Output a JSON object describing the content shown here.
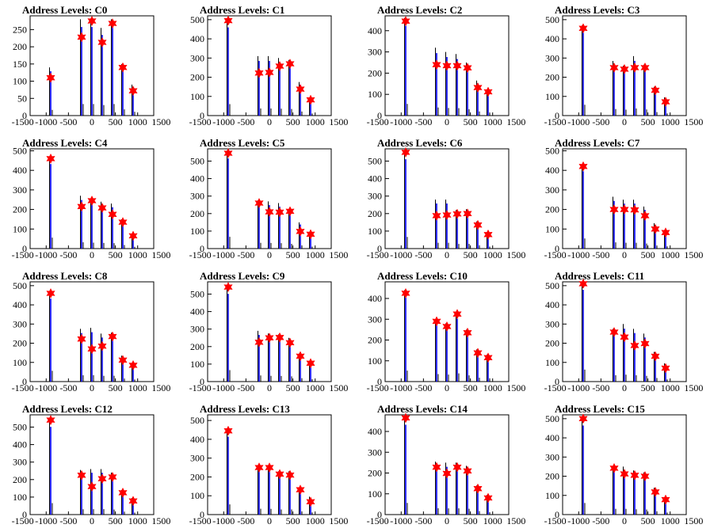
{
  "colors": {
    "peak": "#0000ff",
    "base": "#000000",
    "marker": "#ff0000",
    "frame": "#000000"
  },
  "chart_data": [
    {
      "type": "bar",
      "title": "Address Levels: C0",
      "xlim": [
        -1500,
        1500
      ],
      "ylim": [
        0,
        290
      ],
      "xticks": [
        "-1500",
        "-1000",
        "-500",
        "0",
        "500",
        "1000",
        "1500"
      ],
      "yticks": [
        "0",
        "50",
        "100",
        "150",
        "200",
        "250"
      ],
      "series": [
        {
          "x": [
            -1000,
            -250,
            0,
            250,
            500,
            750,
            1000
          ],
          "values": [
            140,
            280,
            280,
            255,
            280,
            150,
            90
          ]
        }
      ],
      "markers": [
        {
          "x": [
            -1000,
            -250,
            0,
            250,
            500,
            750,
            1000
          ],
          "y": [
            110,
            228,
            275,
            213,
            268,
            140,
            72
          ]
        }
      ]
    },
    {
      "type": "bar",
      "title": "Address Levels: C1",
      "xlim": [
        -1500,
        1500
      ],
      "ylim": [
        0,
        520
      ],
      "xticks": [
        "-1500",
        "-1000",
        "-500",
        "0",
        "500",
        "1000",
        "1500"
      ],
      "yticks": [
        "0",
        "100",
        "200",
        "300",
        "400",
        "500"
      ],
      "series": [
        {
          "x": [
            -1000,
            -250,
            0,
            250,
            500,
            750,
            1000
          ],
          "values": [
            500,
            310,
            310,
            300,
            290,
            175,
            90
          ]
        }
      ],
      "markers": [
        {
          "x": [
            -1000,
            -250,
            0,
            250,
            500,
            750,
            1000
          ],
          "y": [
            495,
            222,
            225,
            258,
            270,
            138,
            82
          ]
        }
      ]
    },
    {
      "type": "bar",
      "title": "Address Levels: C2",
      "xlim": [
        -1500,
        1500
      ],
      "ylim": [
        0,
        470
      ],
      "xticks": [
        "-1500",
        "-1000",
        "-500",
        "0",
        "500",
        "1000",
        "1500"
      ],
      "yticks": [
        "0",
        "100",
        "200",
        "300",
        "400"
      ],
      "series": [
        {
          "x": [
            -1000,
            -250,
            0,
            250,
            500,
            750,
            1000
          ],
          "values": [
            460,
            320,
            300,
            290,
            250,
            165,
            120
          ]
        }
      ],
      "markers": [
        {
          "x": [
            -1000,
            -250,
            0,
            250,
            500,
            750,
            1000
          ],
          "y": [
            445,
            240,
            235,
            235,
            225,
            132,
            112
          ]
        }
      ]
    },
    {
      "type": "bar",
      "title": "Address Levels: C3",
      "xlim": [
        -1500,
        1500
      ],
      "ylim": [
        0,
        520
      ],
      "xticks": [
        "-1500",
        "-1000",
        "-500",
        "0",
        "500",
        "1000",
        "1500"
      ],
      "yticks": [
        "0",
        "100",
        "200",
        "300",
        "400",
        "500"
      ],
      "series": [
        {
          "x": [
            -1000,
            -250,
            0,
            250,
            500,
            750,
            1000
          ],
          "values": [
            470,
            285,
            260,
            310,
            265,
            150,
            95
          ]
        }
      ],
      "markers": [
        {
          "x": [
            -1000,
            -250,
            0,
            250,
            500,
            750,
            1000
          ],
          "y": [
            455,
            250,
            242,
            250,
            250,
            132,
            72
          ]
        }
      ]
    },
    {
      "type": "bar",
      "title": "Address Levels: C4",
      "xlim": [
        -1500,
        1500
      ],
      "ylim": [
        0,
        510
      ],
      "xticks": [
        "-1500",
        "-1000",
        "-500",
        "0",
        "500",
        "1000",
        "1500"
      ],
      "yticks": [
        "0",
        "100",
        "200",
        "300",
        "400",
        "500"
      ],
      "series": [
        {
          "x": [
            -1000,
            -250,
            0,
            250,
            500,
            750,
            1000
          ],
          "values": [
            470,
            270,
            255,
            240,
            230,
            150,
            75
          ]
        }
      ],
      "markers": [
        {
          "x": [
            -1000,
            -250,
            0,
            250,
            500,
            750,
            1000
          ],
          "y": [
            460,
            215,
            245,
            208,
            175,
            135,
            65
          ]
        }
      ]
    },
    {
      "type": "bar",
      "title": "Address Levels: C5",
      "xlim": [
        -1500,
        1500
      ],
      "ylim": [
        0,
        570
      ],
      "xticks": [
        "-1500",
        "-1000",
        "-500",
        "0",
        "500",
        "1000",
        "1500"
      ],
      "yticks": [
        "0",
        "100",
        "200",
        "300",
        "400",
        "500"
      ],
      "series": [
        {
          "x": [
            -1000,
            -250,
            0,
            250,
            500,
            750,
            1000
          ],
          "values": [
            560,
            275,
            270,
            260,
            225,
            150,
            95
          ]
        }
      ],
      "markers": [
        {
          "x": [
            -1000,
            -250,
            0,
            250,
            500,
            750,
            1000
          ],
          "y": [
            545,
            260,
            210,
            208,
            213,
            98,
            82
          ]
        }
      ]
    },
    {
      "type": "bar",
      "title": "Address Levels: C6",
      "xlim": [
        -1500,
        1500
      ],
      "ylim": [
        0,
        570
      ],
      "xticks": [
        "-1500",
        "-1000",
        "-500",
        "0",
        "500",
        "1000",
        "1500"
      ],
      "yticks": [
        "0",
        "100",
        "200",
        "300",
        "400",
        "500"
      ],
      "series": [
        {
          "x": [
            -1000,
            -250,
            0,
            250,
            500,
            750,
            1000
          ],
          "values": [
            555,
            280,
            280,
            220,
            225,
            155,
            95
          ]
        }
      ],
      "markers": [
        {
          "x": [
            -1000,
            -250,
            0,
            250,
            500,
            750,
            1000
          ],
          "y": [
            550,
            188,
            192,
            198,
            200,
            135,
            80
          ]
        }
      ]
    },
    {
      "type": "bar",
      "title": "Address Levels: C7",
      "xlim": [
        -1500,
        1500
      ],
      "ylim": [
        0,
        510
      ],
      "xticks": [
        "-1500",
        "-1000",
        "-500",
        "0",
        "500",
        "1000",
        "1500"
      ],
      "yticks": [
        "0",
        "100",
        "200",
        "300",
        "400",
        "500"
      ],
      "series": [
        {
          "x": [
            -1000,
            -250,
            0,
            250,
            500,
            750,
            1000
          ],
          "values": [
            430,
            265,
            250,
            250,
            215,
            130,
            95
          ]
        }
      ],
      "markers": [
        {
          "x": [
            -1000,
            -250,
            0,
            250,
            500,
            750,
            1000
          ],
          "y": [
            420,
            200,
            200,
            198,
            168,
            100,
            82
          ]
        }
      ]
    },
    {
      "type": "bar",
      "title": "Address Levels: C8",
      "xlim": [
        -1500,
        1500
      ],
      "ylim": [
        0,
        520
      ],
      "xticks": [
        "-1500",
        "-1000",
        "-500",
        "0",
        "500",
        "1000",
        "1500"
      ],
      "yticks": [
        "0",
        "100",
        "200",
        "300",
        "400",
        "500"
      ],
      "series": [
        {
          "x": [
            -1000,
            -250,
            0,
            250,
            500,
            750,
            1000
          ],
          "values": [
            470,
            275,
            280,
            250,
            255,
            135,
            90
          ]
        }
      ],
      "markers": [
        {
          "x": [
            -1000,
            -250,
            0,
            250,
            500,
            750,
            1000
          ],
          "y": [
            460,
            222,
            170,
            185,
            235,
            112,
            85
          ]
        }
      ]
    },
    {
      "type": "bar",
      "title": "Address Levels: C9",
      "xlim": [
        -1500,
        1500
      ],
      "ylim": [
        0,
        570
      ],
      "xticks": [
        "-1500",
        "-1000",
        "-500",
        "0",
        "500",
        "1000",
        "1500"
      ],
      "yticks": [
        "0",
        "100",
        "200",
        "300",
        "400",
        "500"
      ],
      "series": [
        {
          "x": [
            -1000,
            -250,
            0,
            250,
            500,
            750,
            1000
          ],
          "values": [
            545,
            290,
            275,
            270,
            250,
            160,
            115
          ]
        }
      ],
      "markers": [
        {
          "x": [
            -1000,
            -250,
            0,
            250,
            500,
            750,
            1000
          ],
          "y": [
            540,
            225,
            250,
            252,
            222,
            145,
            105
          ]
        }
      ]
    },
    {
      "type": "bar",
      "title": "Address Levels: C10",
      "xlim": [
        -1500,
        1500
      ],
      "ylim": [
        0,
        480
      ],
      "xticks": [
        "-1500",
        "-1000",
        "-500",
        "0",
        "500",
        "1000",
        "1500"
      ],
      "yticks": [
        "0",
        "100",
        "200",
        "300",
        "400"
      ],
      "series": [
        {
          "x": [
            -1000,
            -250,
            0,
            250,
            500,
            750,
            1000
          ],
          "values": [
            440,
            300,
            280,
            330,
            250,
            155,
            130
          ]
        }
      ],
      "markers": [
        {
          "x": [
            -1000,
            -250,
            0,
            250,
            500,
            750,
            1000
          ],
          "y": [
            425,
            290,
            265,
            325,
            235,
            138,
            115
          ]
        }
      ]
    },
    {
      "type": "bar",
      "title": "Address Levels: C11",
      "xlim": [
        -1500,
        1500
      ],
      "ylim": [
        0,
        520
      ],
      "xticks": [
        "-1500",
        "-1000",
        "-500",
        "0",
        "500",
        "1000",
        "1500"
      ],
      "yticks": [
        "0",
        "100",
        "200",
        "300",
        "400",
        "500"
      ],
      "series": [
        {
          "x": [
            -1000,
            -250,
            0,
            250,
            500,
            750,
            1000
          ],
          "values": [
            520,
            275,
            300,
            275,
            250,
            155,
            95
          ]
        }
      ],
      "markers": [
        {
          "x": [
            -1000,
            -250,
            0,
            250,
            500,
            750,
            1000
          ],
          "y": [
            510,
            258,
            232,
            188,
            198,
            132,
            70
          ]
        }
      ]
    },
    {
      "type": "bar",
      "title": "Address Levels: C12",
      "xlim": [
        -1500,
        1500
      ],
      "ylim": [
        0,
        570
      ],
      "xticks": [
        "-1500",
        "-1000",
        "-500",
        "0",
        "500",
        "1000",
        "1500"
      ],
      "yticks": [
        "0",
        "100",
        "200",
        "300",
        "400",
        "500"
      ],
      "series": [
        {
          "x": [
            -1000,
            -250,
            0,
            250,
            500,
            750,
            1000
          ],
          "values": [
            545,
            255,
            260,
            260,
            240,
            140,
            95
          ]
        }
      ],
      "markers": [
        {
          "x": [
            -1000,
            -250,
            0,
            250,
            500,
            750,
            1000
          ],
          "y": [
            540,
            225,
            160,
            205,
            215,
            125,
            78
          ]
        }
      ]
    },
    {
      "type": "bar",
      "title": "Address Levels: C13",
      "xlim": [
        -1500,
        1500
      ],
      "ylim": [
        0,
        530
      ],
      "xticks": [
        "-1500",
        "-1000",
        "-500",
        "0",
        "500",
        "1000",
        "1500"
      ],
      "yticks": [
        "0",
        "100",
        "200",
        "300",
        "400",
        "500"
      ],
      "series": [
        {
          "x": [
            -1000,
            -250,
            0,
            250,
            500,
            750,
            1000
          ],
          "values": [
            450,
            260,
            255,
            230,
            230,
            140,
            95
          ]
        }
      ],
      "markers": [
        {
          "x": [
            -1000,
            -250,
            0,
            250,
            500,
            750,
            1000
          ],
          "y": [
            445,
            250,
            250,
            215,
            210,
            132,
            68
          ]
        }
      ]
    },
    {
      "type": "bar",
      "title": "Address Levels: C14",
      "xlim": [
        -1500,
        1500
      ],
      "ylim": [
        0,
        480
      ],
      "xticks": [
        "-1500",
        "-1000",
        "-500",
        "0",
        "500",
        "1000",
        "1500"
      ],
      "yticks": [
        "0",
        "100",
        "200",
        "300",
        "400"
      ],
      "series": [
        {
          "x": [
            -1000,
            -250,
            0,
            250,
            500,
            750,
            1000
          ],
          "values": [
            470,
            255,
            250,
            250,
            235,
            140,
            95
          ]
        }
      ],
      "markers": [
        {
          "x": [
            -1000,
            -250,
            0,
            250,
            500,
            750,
            1000
          ],
          "y": [
            465,
            228,
            198,
            228,
            210,
            125,
            80
          ]
        }
      ]
    },
    {
      "type": "bar",
      "title": "Address Levels: C15",
      "xlim": [
        -1500,
        1500
      ],
      "ylim": [
        0,
        520
      ],
      "xticks": [
        "-1500",
        "-1000",
        "-500",
        "0",
        "500",
        "1000",
        "1500"
      ],
      "yticks": [
        "0",
        "100",
        "200",
        "300",
        "400",
        "500"
      ],
      "series": [
        {
          "x": [
            -1000,
            -250,
            0,
            250,
            500,
            750,
            1000
          ],
          "values": [
            505,
            250,
            250,
            230,
            220,
            140,
            90
          ]
        }
      ],
      "markers": [
        {
          "x": [
            -1000,
            -250,
            0,
            250,
            500,
            750,
            1000
          ],
          "y": [
            500,
            242,
            212,
            205,
            200,
            118,
            78
          ]
        }
      ]
    }
  ]
}
